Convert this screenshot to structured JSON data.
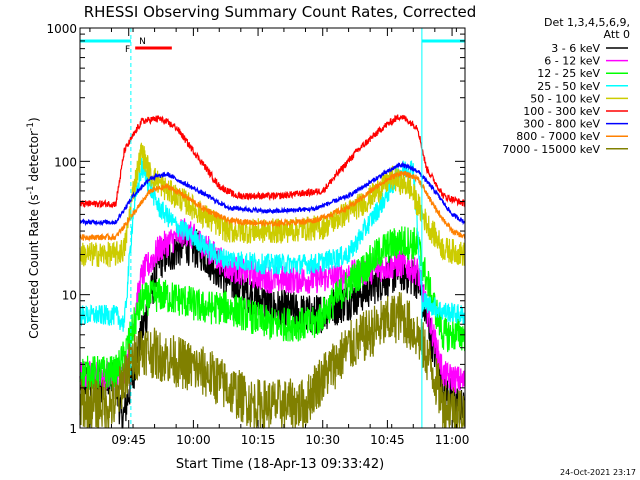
{
  "chart_data": {
    "type": "line",
    "title": "RHESSI Observing Summary Count Rates, Corrected",
    "xlabel": "Start Time (18-Apr-13 09:33:42)",
    "ylabel_main": "Corrected Count Rate (s",
    "ylabel_sup1": "-1",
    "ylabel_mid": " detector",
    "ylabel_sup2": "-1",
    "ylabel_end": ")",
    "yscale": "log",
    "ylim": [
      1,
      1000
    ],
    "xlim_min": [
      33.7,
      123
    ],
    "x_unit": "minutes after 09:00",
    "x_ticks": [
      {
        "min": 45,
        "label": "09:45"
      },
      {
        "min": 60,
        "label": "10:00"
      },
      {
        "min": 75,
        "label": "10:15"
      },
      {
        "min": 90,
        "label": "10:30"
      },
      {
        "min": 105,
        "label": "10:45"
      },
      {
        "min": 120,
        "label": "11:00"
      }
    ],
    "y_ticks": [
      {
        "v": 1,
        "label": "1"
      },
      {
        "v": 10,
        "label": "10"
      },
      {
        "v": 100,
        "label": "100"
      },
      {
        "v": 1000,
        "label": "1000"
      }
    ],
    "legend_header": [
      "Det 1,3,4,5,6,9,",
      "Att 0"
    ],
    "legend_position": "right",
    "series": [
      {
        "name": "3 - 6 keV",
        "color": "#000000",
        "x": [
          33.7,
          42,
          43.5,
          48,
          52,
          58,
          62,
          68,
          78,
          88,
          96,
          104,
          108,
          112,
          115,
          118,
          123
        ],
        "y": [
          2.2,
          2.2,
          1.1,
          5,
          18,
          24,
          21,
          13,
          8,
          7,
          9,
          13,
          15,
          13,
          5,
          2,
          1.3
        ]
      },
      {
        "name": "6 - 12 keV",
        "color": "#ff00ff",
        "x": [
          33.7,
          42,
          44,
          48,
          52,
          58,
          62,
          68,
          78,
          88,
          96,
          104,
          108,
          112,
          115,
          118,
          123
        ],
        "y": [
          2.5,
          2.5,
          2.5,
          14,
          22,
          30,
          24,
          16,
          13,
          13,
          14,
          16,
          17,
          15,
          6,
          2.5,
          2.2
        ]
      },
      {
        "name": "12 - 25 keV",
        "color": "#00ff00",
        "x": [
          33.7,
          42,
          44,
          48,
          52,
          58,
          62,
          68,
          78,
          88,
          96,
          104,
          108,
          112,
          115,
          118,
          123
        ],
        "y": [
          2.6,
          2.6,
          3.5,
          9,
          10,
          9,
          8,
          8,
          6,
          6,
          12,
          22,
          25,
          24,
          10,
          5,
          5
        ]
      },
      {
        "name": "25 - 50 keV",
        "color": "#00ffff",
        "x": [
          33.7,
          42,
          44,
          46,
          48,
          52,
          56,
          60,
          66,
          76,
          88,
          96,
          104,
          108,
          111,
          112,
          113,
          118,
          123
        ],
        "y": [
          7,
          7,
          6,
          40,
          90,
          45,
          33,
          27,
          19,
          17,
          17,
          20,
          50,
          85,
          90,
          30,
          9,
          7.5,
          7
        ]
      },
      {
        "name": "50 - 100 keV",
        "color": "#cccc00",
        "x": [
          33.7,
          42,
          44,
          46,
          48,
          50,
          54,
          58,
          62,
          68,
          80,
          90,
          100,
          106,
          110,
          114,
          118,
          123
        ],
        "y": [
          20,
          20,
          22,
          60,
          120,
          80,
          60,
          50,
          40,
          30,
          30,
          32,
          50,
          75,
          65,
          35,
          22,
          20
        ]
      },
      {
        "name": "100 - 300 keV",
        "color": "#ff0000",
        "x": [
          33.7,
          42,
          44,
          48,
          52,
          56,
          60,
          66,
          70,
          80,
          90,
          98,
          104,
          108,
          112,
          114,
          118,
          123
        ],
        "y": [
          48,
          48,
          120,
          200,
          210,
          180,
          120,
          65,
          55,
          55,
          60,
          120,
          180,
          220,
          180,
          90,
          55,
          48
        ]
      },
      {
        "name": "300 - 800 keV",
        "color": "#0000ff",
        "x": [
          33.7,
          42,
          46,
          50,
          54,
          58,
          62,
          68,
          78,
          88,
          96,
          104,
          108,
          112,
          116,
          120,
          123
        ],
        "y": [
          35,
          35,
          55,
          75,
          80,
          68,
          58,
          45,
          42,
          44,
          55,
          80,
          95,
          85,
          60,
          40,
          35
        ]
      },
      {
        "name": "800 - 7000 keV",
        "color": "#ff8000",
        "x": [
          33.7,
          42,
          46,
          50,
          54,
          58,
          62,
          68,
          78,
          88,
          96,
          104,
          108,
          112,
          116,
          120,
          123
        ],
        "y": [
          27,
          27,
          40,
          60,
          65,
          55,
          45,
          36,
          34,
          36,
          45,
          70,
          82,
          75,
          45,
          30,
          27
        ]
      },
      {
        "name": "7000 - 15000 keV",
        "color": "#808000",
        "x": [
          33.7,
          42,
          44,
          48,
          52,
          58,
          64,
          68,
          74,
          86,
          88,
          96,
          104,
          108,
          112,
          115,
          118,
          123
        ],
        "y": [
          1.5,
          1.5,
          2.5,
          4,
          3.5,
          3,
          2.5,
          2,
          1.5,
          1.5,
          2,
          4,
          6,
          7,
          5,
          3,
          1.5,
          1.3
        ]
      }
    ],
    "observing_flags": [
      {
        "label": "F",
        "color": "#ff0000"
      },
      {
        "label": "N",
        "color": "#00ffff"
      }
    ],
    "night_intervals_min": [
      [
        33.7,
        45.5
      ],
      [
        113,
        123
      ]
    ],
    "flare_interval_min": [
      46.5,
      55
    ],
    "vertical_markers_min": [
      45.5,
      113,
      123
    ],
    "timestamp": "24-Oct-2021 23:17"
  }
}
